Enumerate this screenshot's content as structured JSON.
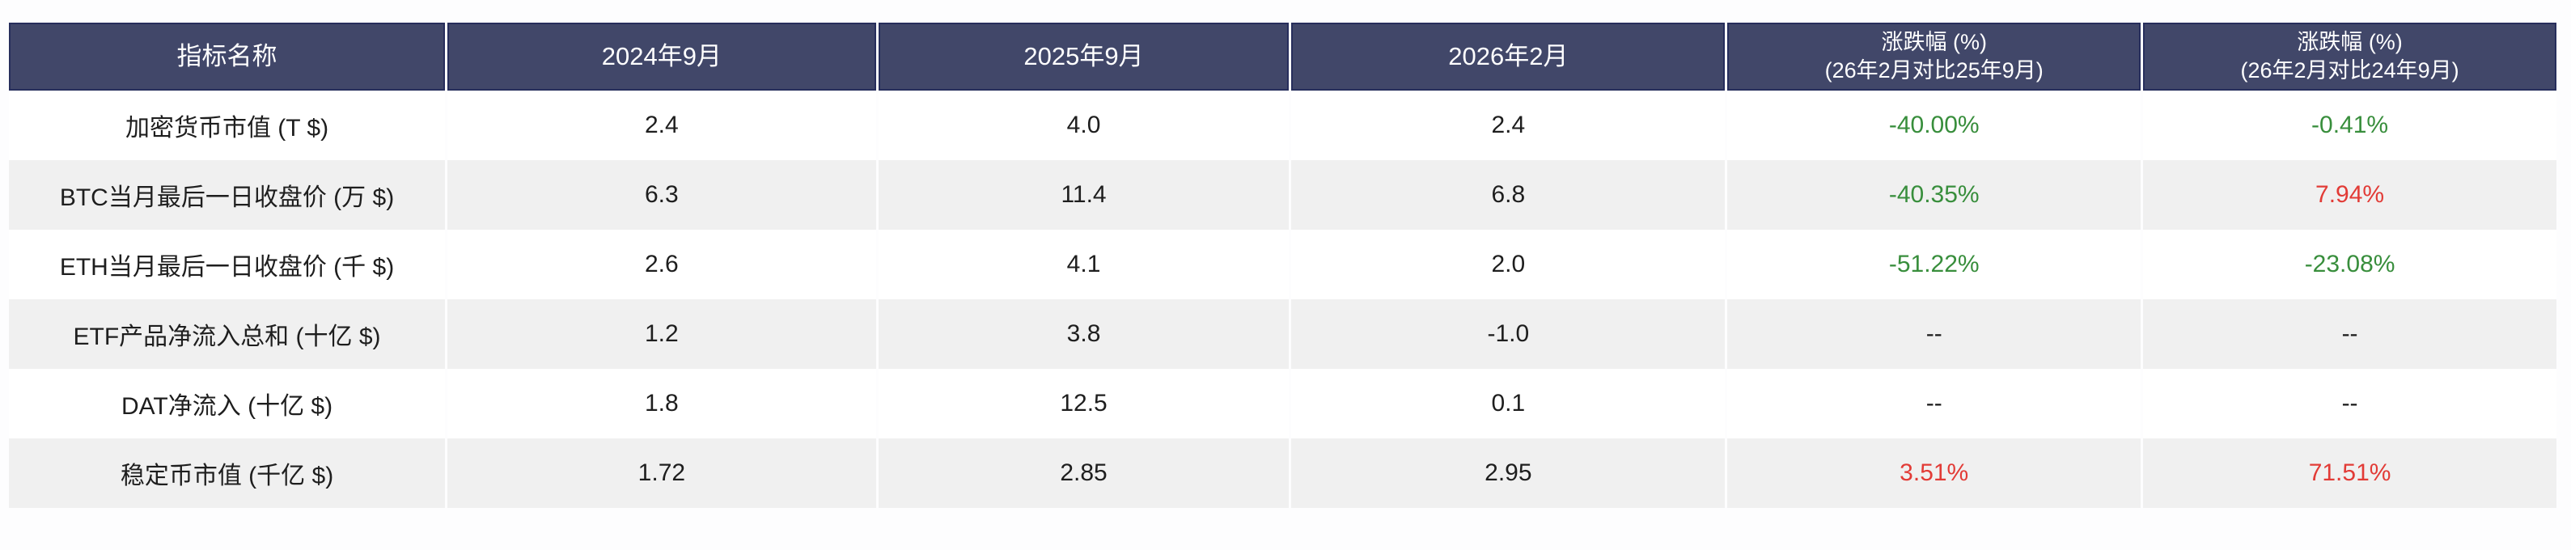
{
  "colors": {
    "header_bg": "#414769",
    "header_border": "#272e5c",
    "row_alt_bg": "#f0f0f0",
    "text": "#1e1e1e",
    "positive_red": "#e23b36",
    "negative_green": "#388e3c",
    "header_text": "#ffffff"
  },
  "table": {
    "columns": [
      {
        "label": "指标名称",
        "sublabel": ""
      },
      {
        "label": "2024年9月",
        "sublabel": ""
      },
      {
        "label": "2025年9月",
        "sublabel": ""
      },
      {
        "label": "2026年2月",
        "sublabel": ""
      },
      {
        "label": "涨跌幅 (%)",
        "sublabel": "(26年2月对比25年9月)"
      },
      {
        "label": "涨跌幅 (%)",
        "sublabel": "(26年2月对比24年9月)"
      }
    ],
    "rows": [
      {
        "label": "加密货币市值 (T $)",
        "values": [
          "2.4",
          "4.0",
          "2.4"
        ],
        "changes": [
          {
            "text": "-40.00%",
            "color": "green"
          },
          {
            "text": "-0.41%",
            "color": "green"
          }
        ]
      },
      {
        "label": "BTC当月最后一日收盘价 (万 $)",
        "values": [
          "6.3",
          "11.4",
          "6.8"
        ],
        "changes": [
          {
            "text": "-40.35%",
            "color": "green"
          },
          {
            "text": "7.94%",
            "color": "red"
          }
        ]
      },
      {
        "label": "ETH当月最后一日收盘价 (千 $)",
        "values": [
          "2.6",
          "4.1",
          "2.0"
        ],
        "changes": [
          {
            "text": "-51.22%",
            "color": "green"
          },
          {
            "text": "-23.08%",
            "color": "green"
          }
        ]
      },
      {
        "label": "ETF产品净流入总和 (十亿 $)",
        "values": [
          "1.2",
          "3.8",
          "-1.0"
        ],
        "changes": [
          {
            "text": "--",
            "color": "default"
          },
          {
            "text": "--",
            "color": "default"
          }
        ]
      },
      {
        "label": "DAT净流入 (十亿 $)",
        "values": [
          "1.8",
          "12.5",
          "0.1"
        ],
        "changes": [
          {
            "text": "--",
            "color": "default"
          },
          {
            "text": "--",
            "color": "default"
          }
        ]
      },
      {
        "label": "稳定币市值 (千亿 $)",
        "values": [
          "1.72",
          "2.85",
          "2.95"
        ],
        "changes": [
          {
            "text": "3.51%",
            "color": "red"
          },
          {
            "text": "71.51%",
            "color": "red"
          }
        ]
      }
    ]
  },
  "chart_data": {
    "type": "table",
    "title": "",
    "columns": [
      "指标名称",
      "2024年9月",
      "2025年9月",
      "2026年2月",
      "涨跌幅 (%) (26年2月对比25年9月)",
      "涨跌幅 (%) (26年2月对比24年9月)"
    ],
    "rows": [
      [
        "加密货币市值 (T $)",
        "2.4",
        "4.0",
        "2.4",
        "-40.00%",
        "-0.41%"
      ],
      [
        "BTC当月最后一日收盘价 (万 $)",
        "6.3",
        "11.4",
        "6.8",
        "-40.35%",
        "7.94%"
      ],
      [
        "ETH当月最后一日收盘价 (千 $)",
        "2.6",
        "4.1",
        "2.0",
        "-51.22%",
        "-23.08%"
      ],
      [
        "ETF产品净流入总和 (十亿 $)",
        "1.2",
        "3.8",
        "-1.0",
        "--",
        "--"
      ],
      [
        "DAT净流入 (十亿 $)",
        "1.8",
        "12.5",
        "0.1",
        "--",
        "--"
      ],
      [
        "稳定币市值 (千亿 $)",
        "1.72",
        "2.85",
        "2.95",
        "3.51%",
        "71.51%"
      ]
    ],
    "notes": "negative/decline values rendered green, positive/increase values rendered red (CN market convention)"
  }
}
